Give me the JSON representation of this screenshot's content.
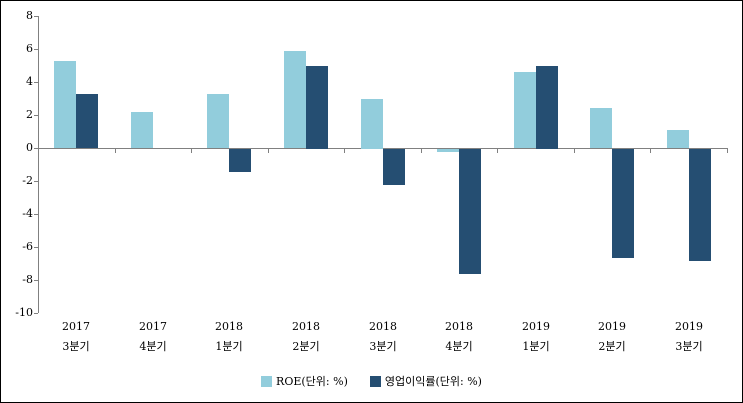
{
  "chart_data": {
    "type": "bar",
    "title": "",
    "xlabel": "",
    "ylabel": "",
    "categories": [
      {
        "year": "2017",
        "quarter": "3분기"
      },
      {
        "year": "2017",
        "quarter": "4분기"
      },
      {
        "year": "2018",
        "quarter": "1분기"
      },
      {
        "year": "2018",
        "quarter": "2분기"
      },
      {
        "year": "2018",
        "quarter": "3분기"
      },
      {
        "year": "2018",
        "quarter": "4분기"
      },
      {
        "year": "2019",
        "quarter": "1분기"
      },
      {
        "year": "2019",
        "quarter": "2분기"
      },
      {
        "year": "2019",
        "quarter": "3분기"
      }
    ],
    "series": [
      {
        "name": "ROE(단위: %)",
        "color": "#92CDDC",
        "values": [
          5.3,
          2.2,
          3.3,
          5.9,
          3.0,
          -0.2,
          4.6,
          2.4,
          1.1
        ]
      },
      {
        "name": "영업이익률(단위: %)",
        "color": "#254E72",
        "values": [
          3.3,
          0,
          -1.4,
          5.0,
          -2.2,
          -7.6,
          5.0,
          -6.6,
          -6.8
        ]
      }
    ],
    "ylim": [
      -10,
      8
    ],
    "ytick_step": 2,
    "ytick_labels": [
      "8",
      "6",
      "4",
      "2",
      "0",
      "-2",
      "-4",
      "-6",
      "-8",
      "-10"
    ],
    "legend_position": "bottom",
    "grid": false,
    "axis_color": "#808080",
    "text_color": "#000000"
  }
}
